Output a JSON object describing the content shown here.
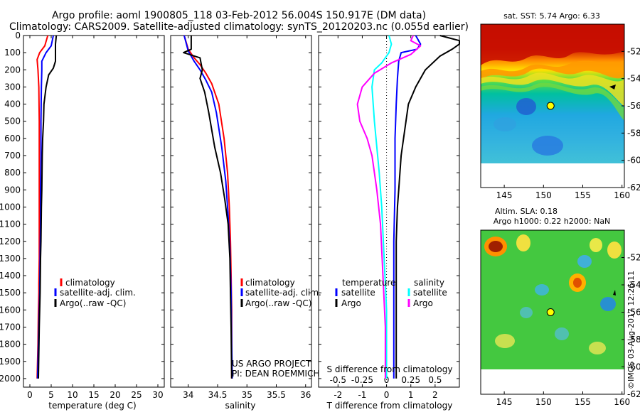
{
  "header": {
    "line1": "Argo profile: aoml 1900805_118 03-Feb-2012 56.004S 150.917E (DM data)",
    "line2": "Climatology: CARS2009. Satellite-adjusted climatology: synTS_20120203.nc (0.055d earlier)"
  },
  "colors": {
    "climatology": "#ff0000",
    "satellite": "#0000ff",
    "argo": "#000000",
    "sat_salinity": "#00ffff",
    "argo_salinity": "#ff00ff"
  },
  "chart_data": [
    {
      "type": "line",
      "panel": "temperature",
      "xlabel": "temperature (deg C)",
      "xlim": [
        -1.5,
        31.5
      ],
      "ylim": [
        2050,
        0
      ],
      "xticks": [
        0,
        5,
        10,
        15,
        20,
        25,
        30
      ],
      "yticks": [
        0,
        100,
        200,
        300,
        400,
        500,
        600,
        700,
        800,
        900,
        1000,
        1100,
        1200,
        1300,
        1400,
        1500,
        1600,
        1700,
        1800,
        1900,
        2000
      ],
      "legend": [
        "climatology",
        "satellite-adj. clim.",
        "Argo(..raw -QC)"
      ],
      "series": [
        {
          "name": "climatology",
          "color": "#ff0000",
          "x": [
            4.2,
            3.5,
            2.3,
            1.7,
            1.9,
            2.1,
            2.2,
            2.2,
            2.2,
            2.2,
            2.2,
            2.1,
            2.1,
            2.0,
            1.9,
            1.8,
            1.7
          ],
          "y": [
            0,
            60,
            100,
            140,
            200,
            300,
            500,
            700,
            900,
            1100,
            1300,
            1450,
            1500,
            1600,
            1800,
            1900,
            2000
          ]
        },
        {
          "name": "satellite-adj. clim.",
          "color": "#0000ff",
          "x": [
            5.5,
            5.0,
            3.8,
            2.8,
            2.8,
            2.7,
            2.6,
            2.6,
            2.5,
            2.5,
            2.4,
            2.3,
            2.2,
            2.1,
            1.9,
            1.8
          ],
          "y": [
            0,
            60,
            100,
            150,
            200,
            300,
            500,
            700,
            900,
            1100,
            1300,
            1500,
            1600,
            1700,
            1900,
            2000
          ]
        },
        {
          "name": "Argo(..raw -QC)",
          "color": "#000000",
          "x": [
            6.2,
            6.0,
            6.0,
            5.5,
            4.4,
            3.8,
            3.3,
            3.2,
            3.0,
            2.9,
            2.8,
            2.7,
            2.6,
            2.5,
            2.4,
            2.3,
            2.2,
            2.1,
            2.0
          ],
          "y": [
            0,
            50,
            150,
            190,
            230,
            300,
            400,
            500,
            600,
            700,
            900,
            1000,
            1200,
            1300,
            1500,
            1600,
            1700,
            1850,
            2000
          ]
        }
      ]
    },
    {
      "type": "line",
      "panel": "salinity",
      "xlabel": "salinity",
      "xlim": [
        33.7,
        36.1
      ],
      "ylim": [
        2050,
        0
      ],
      "xticks": [
        34,
        34.5,
        35,
        35.5,
        36
      ],
      "xtick_labels": [
        "34",
        "34.5",
        "35",
        "35.5",
        "36"
      ],
      "legend": [
        "climatology",
        "satellite-adj. clim.",
        "Argo(..raw -QC)"
      ],
      "annotation": [
        "US ARGO PROJECT",
        "PI: DEAN ROEMMICH"
      ],
      "series": [
        {
          "name": "climatology",
          "color": "#ff0000",
          "x": [
            33.93,
            34.0,
            34.1,
            34.2,
            34.3,
            34.4,
            34.52,
            34.61,
            34.67,
            34.7,
            34.72,
            34.73,
            34.74,
            34.74,
            34.74
          ],
          "y": [
            0,
            80,
            130,
            170,
            220,
            280,
            400,
            600,
            800,
            1000,
            1200,
            1400,
            1600,
            1800,
            2000
          ]
        },
        {
          "name": "satellite-adj. clim.",
          "color": "#0000ff",
          "x": [
            33.93,
            34.0,
            34.1,
            34.2,
            34.3,
            34.4,
            34.48,
            34.57,
            34.64,
            34.68,
            34.71,
            34.73,
            34.74,
            34.75
          ],
          "y": [
            0,
            90,
            150,
            200,
            260,
            330,
            450,
            650,
            850,
            1050,
            1250,
            1500,
            1800,
            2000
          ]
        },
        {
          "name": "Argo(..raw -QC)",
          "color": "#000000",
          "x": [
            34.05,
            34.05,
            33.92,
            34.2,
            34.24,
            34.2,
            34.28,
            34.35,
            34.45,
            34.55,
            34.62,
            34.68,
            34.71,
            34.72,
            34.73,
            34.74
          ],
          "y": [
            0,
            80,
            100,
            130,
            200,
            250,
            330,
            450,
            650,
            800,
            950,
            1100,
            1300,
            1500,
            1700,
            2000
          ]
        }
      ]
    },
    {
      "type": "line",
      "panel": "difference",
      "xlabel": "T difference from climatology",
      "xlabel_top": "S difference from climatology",
      "xlim": [
        -2.8,
        3.0
      ],
      "ylim": [
        2050,
        0
      ],
      "xticks": [
        -2,
        -1,
        0,
        1,
        2
      ],
      "xticks_top": [
        -0.5,
        -0.25,
        0,
        0.25,
        0.5
      ],
      "legend_left": {
        "title": "temperature",
        "items": [
          "satellite",
          "Argo"
        ]
      },
      "legend_right": {
        "title": "salinity",
        "items": [
          "satellite",
          "Argo"
        ]
      },
      "series": [
        {
          "name": "temperature satellite",
          "color": "#0000ff",
          "x": [
            1.2,
            1.4,
            1.25,
            0.6,
            0.5,
            0.45,
            0.4,
            0.35,
            0.35,
            0.3,
            0.3,
            0.3,
            0.3
          ],
          "y": [
            0,
            50,
            80,
            100,
            150,
            250,
            400,
            600,
            900,
            1200,
            1500,
            1800,
            2000
          ]
        },
        {
          "name": "temperature Argo",
          "color": "#000000",
          "x": [
            2.2,
            3.0,
            3.0,
            2.7,
            2.2,
            1.6,
            1.2,
            0.9,
            0.8,
            0.7,
            0.6,
            0.55,
            0.5,
            0.45,
            0.4,
            0.4,
            0.4
          ],
          "y": [
            0,
            30,
            50,
            80,
            120,
            200,
            300,
            400,
            500,
            600,
            700,
            800,
            900,
            1000,
            1200,
            1500,
            2000
          ]
        },
        {
          "name": "salinity satellite",
          "color": "#00ffff",
          "x": [
            0.1,
            0.2,
            0.1,
            -0.2,
            -0.5,
            -0.6,
            -0.55,
            -0.5,
            -0.4,
            -0.3,
            -0.2,
            -0.1,
            0.0,
            0.0
          ],
          "y": [
            0,
            50,
            100,
            160,
            200,
            300,
            400,
            500,
            650,
            800,
            1000,
            1300,
            1600,
            2000
          ]
        },
        {
          "name": "salinity Argo",
          "color": "#ff00ff",
          "x": [
            1.1,
            1.0,
            1.4,
            1.0,
            0.2,
            -0.5,
            -1.0,
            -1.2,
            -1.1,
            -0.8,
            -0.6,
            -0.4,
            -0.25,
            -0.15,
            -0.05,
            -0.05
          ],
          "y": [
            0,
            30,
            60,
            110,
            160,
            220,
            300,
            400,
            500,
            600,
            700,
            900,
            1100,
            1400,
            1700,
            2000
          ]
        }
      ]
    },
    {
      "type": "heatmap",
      "panel": "map-sst",
      "title": "sat. SST: 5.74  Argo: 6.33",
      "xlim": [
        142,
        160.3
      ],
      "ylim": [
        -62,
        -50
      ],
      "xticks": [
        145,
        150,
        155,
        160
      ],
      "yticks": [
        -52,
        -54,
        -56,
        -58,
        -60,
        -62
      ],
      "marker": {
        "lon": 150.9,
        "lat": -56.0
      }
    },
    {
      "type": "heatmap",
      "panel": "map-sla",
      "title": "Altim. SLA: 0.18",
      "subtitle": "Argo h1000: 0.22 h2000: NaN",
      "xlim": [
        142,
        160.3
      ],
      "ylim": [
        -62,
        -50
      ],
      "xticks": [
        145,
        150,
        155,
        160
      ],
      "yticks": [
        -52,
        -54,
        -56,
        -58,
        -60,
        -62
      ],
      "marker": {
        "lon": 150.9,
        "lat": -56.0
      }
    }
  ],
  "credit": "©IMOS 03-Aug-2017 12:26:11"
}
